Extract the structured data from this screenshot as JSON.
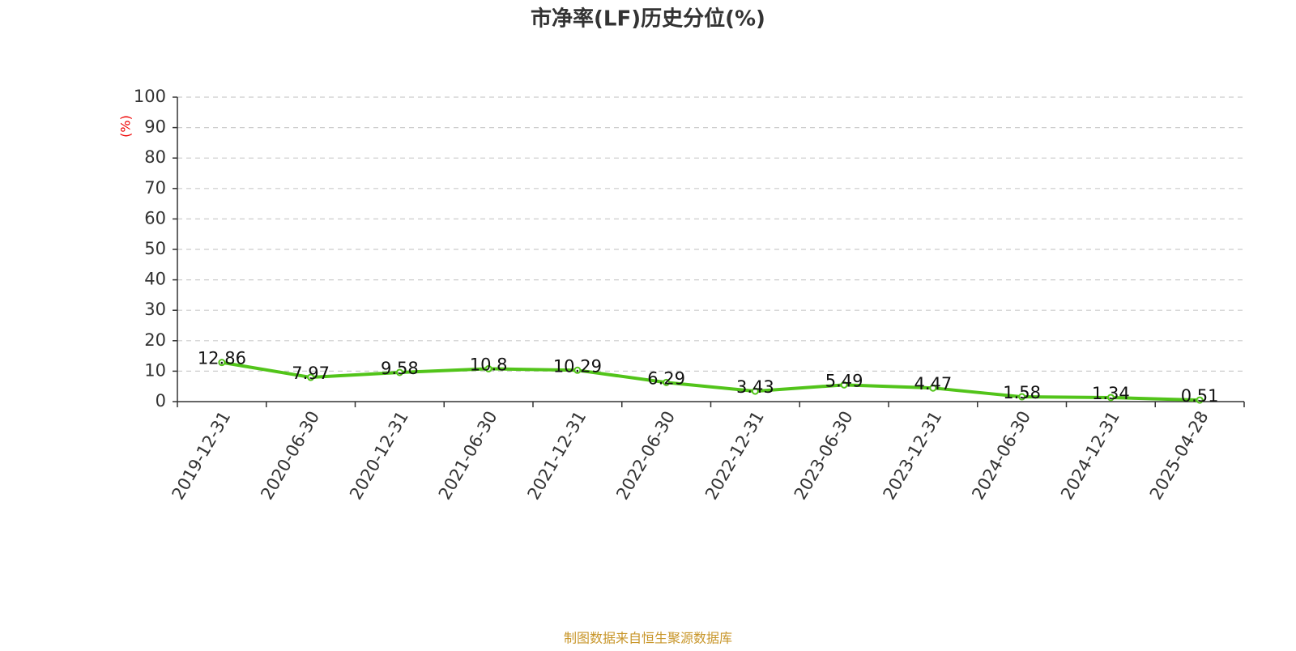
{
  "chart_data": {
    "type": "line",
    "title": "市净率(LF)历史分位(%)",
    "y_label": "(%)",
    "source": "制图数据来自恒生聚源数据库",
    "categories": [
      "2019-12-31",
      "2020-06-30",
      "2020-12-31",
      "2021-06-30",
      "2021-12-31",
      "2022-06-30",
      "2022-12-31",
      "2023-06-30",
      "2023-12-31",
      "2024-06-30",
      "2024-12-31",
      "2025-04-28"
    ],
    "values": [
      12.86,
      7.97,
      9.58,
      10.8,
      10.29,
      6.29,
      3.43,
      5.49,
      4.47,
      1.58,
      1.34,
      0.51
    ],
    "color": "#52c41a",
    "ylim": [
      0,
      100
    ],
    "yticks": [
      0,
      10,
      20,
      30,
      40,
      50,
      60,
      70,
      80,
      90,
      100
    ],
    "grid": true
  }
}
